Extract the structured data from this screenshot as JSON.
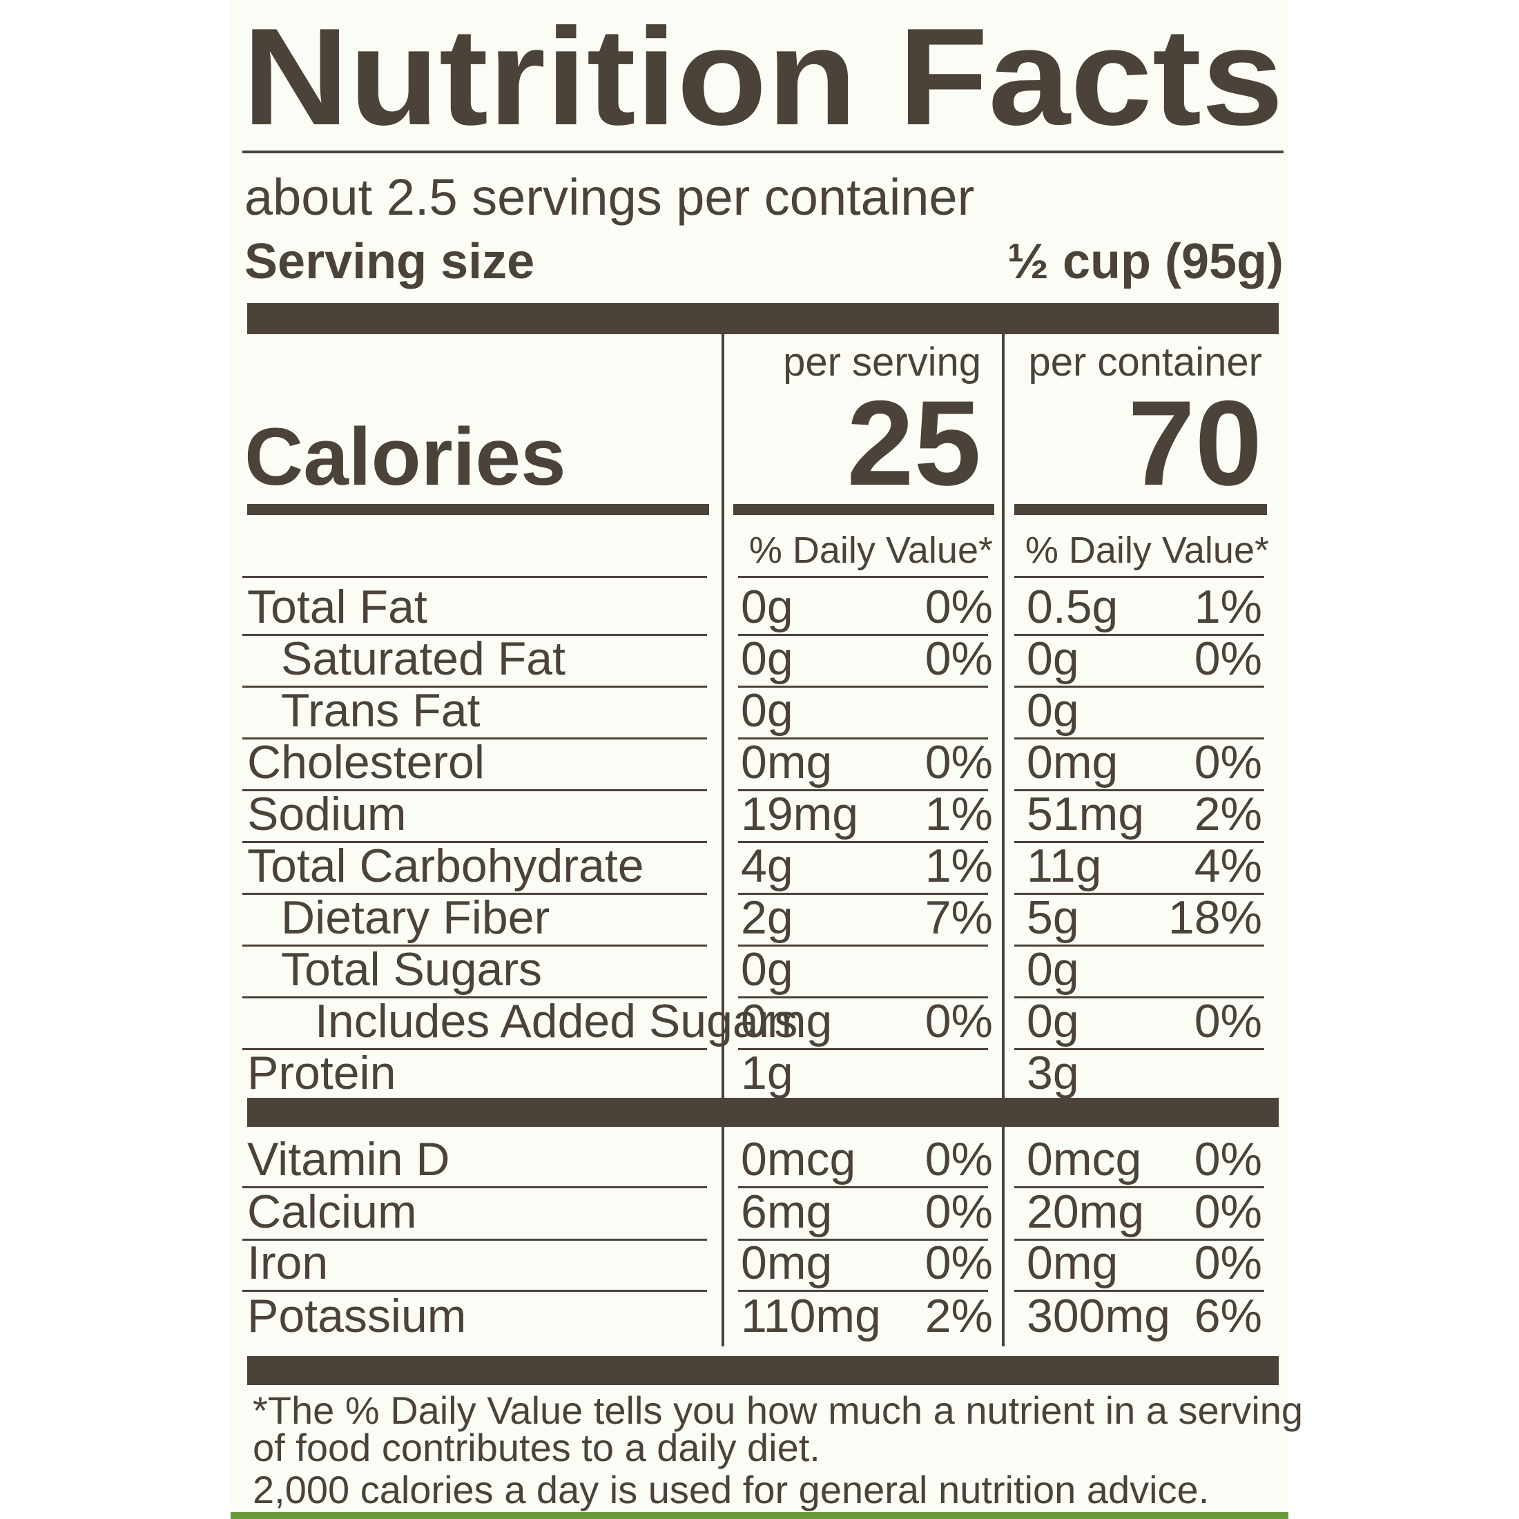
{
  "title": "Nutrition Facts",
  "servings": "about 2.5 servings per container",
  "serving_size": {
    "label": "Serving size",
    "value": "½ cup (95g)"
  },
  "columns": [
    "per serving",
    "per container"
  ],
  "calories": {
    "label": "Calories",
    "values": [
      "25",
      "70"
    ]
  },
  "dv_header": [
    "% Daily Value*",
    "% Daily Value*"
  ],
  "nutrients": [
    {
      "name": "Total Fat",
      "indent": 0,
      "serving": [
        "0g",
        "0%"
      ],
      "container": [
        "0.5g",
        "1%"
      ]
    },
    {
      "name": "Saturated Fat",
      "indent": 1,
      "serving": [
        "0g",
        "0%"
      ],
      "container": [
        "0g",
        "0%"
      ]
    },
    {
      "name": "Trans Fat",
      "indent": 1,
      "serving": [
        "0g"
      ],
      "container": [
        "0g"
      ]
    },
    {
      "name": "Cholesterol",
      "indent": 0,
      "serving": [
        "0mg",
        "0%"
      ],
      "container": [
        "0mg",
        "0%"
      ]
    },
    {
      "name": "Sodium",
      "indent": 0,
      "serving": [
        "19mg",
        "1%"
      ],
      "container": [
        "51mg",
        "2%"
      ]
    },
    {
      "name": "Total Carbohydrate",
      "indent": 0,
      "serving": [
        "4g",
        "1%"
      ],
      "container": [
        "11g",
        "4%"
      ]
    },
    {
      "name": "Dietary Fiber",
      "indent": 1,
      "serving": [
        "2g",
        "7%"
      ],
      "container": [
        "5g",
        "18%"
      ]
    },
    {
      "name": "Total Sugars",
      "indent": 1,
      "serving": [
        "0g"
      ],
      "container": [
        "0g"
      ]
    },
    {
      "name": "Includes Added Sugars",
      "indent": 2,
      "serving": [
        "0mg",
        "0%"
      ],
      "container": [
        "0g",
        "0%"
      ]
    },
    {
      "name": "Protein",
      "indent": 0,
      "serving": [
        "1g"
      ],
      "container": [
        "3g"
      ]
    }
  ],
  "vitamins": [
    {
      "name": "Vitamin D",
      "serving": [
        "0mcg",
        "0%"
      ],
      "container": [
        "0mcg",
        "0%"
      ]
    },
    {
      "name": "Calcium",
      "serving": [
        "6mg",
        "0%"
      ],
      "container": [
        "20mg",
        "0%"
      ]
    },
    {
      "name": "Iron",
      "serving": [
        "0mg",
        "0%"
      ],
      "container": [
        "0mg",
        "0%"
      ]
    },
    {
      "name": "Potassium",
      "serving": [
        "110mg",
        "2%"
      ],
      "container": [
        "300mg",
        "6%"
      ]
    }
  ],
  "footnote": [
    "*The % Daily Value tells you how much a nutrient in a serving",
    "of food contributes to a daily diet.",
    "2,000 calories a day is used for general nutrition advice."
  ]
}
